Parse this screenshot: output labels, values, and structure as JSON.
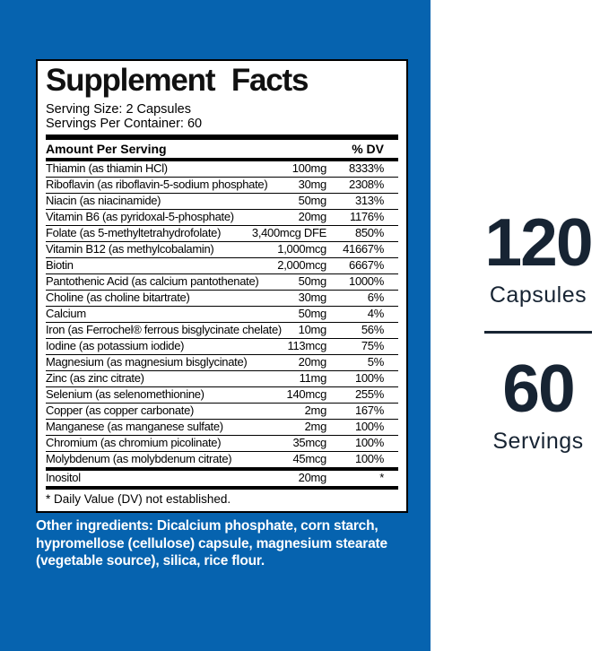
{
  "colors": {
    "background_blue": "#0663af",
    "panel_background": "#ffffff",
    "panel_border": "#000000",
    "text_black": "#000000",
    "navy_text": "#172433",
    "other_ingredients_text": "#ffffff"
  },
  "label": {
    "title": "Supplement Facts",
    "serving_size": "Serving Size: 2 Capsules",
    "servings_per_container": "Servings Per Container: 60",
    "header": {
      "amount": "Amount Per Serving",
      "dv": "% DV"
    },
    "rows": [
      {
        "name": "Thiamin (as thiamin HCl)",
        "amount": "100mg",
        "dv": "8333%"
      },
      {
        "name": "Riboflavin (as riboflavin-5-sodium phosphate)",
        "amount": "30mg",
        "dv": "2308%"
      },
      {
        "name": "Niacin (as niacinamide)",
        "amount": "50mg",
        "dv": "313%"
      },
      {
        "name": "Vitamin B6 (as pyridoxal-5-phosphate)",
        "amount": "20mg",
        "dv": "1176%"
      },
      {
        "name": "Folate (as 5-methyltetrahydrofolate)",
        "amount": "3,400mcg DFE",
        "dv": "850%"
      },
      {
        "name": "Vitamin B12 (as methylcobalamin)",
        "amount": "1,000mcg",
        "dv": "41667%"
      },
      {
        "name": "Biotin",
        "amount": "2,000mcg",
        "dv": "6667%"
      },
      {
        "name": "Pantothenic Acid (as calcium pantothenate)",
        "amount": "50mg",
        "dv": "1000%"
      },
      {
        "name": "Choline (as choline bitartrate)",
        "amount": "30mg",
        "dv": "6%"
      },
      {
        "name": "Calcium",
        "amount": "50mg",
        "dv": "4%"
      },
      {
        "name": "Iron (as Ferrochel® ferrous bisglycinate chelate)",
        "amount": "10mg",
        "dv": "56%"
      },
      {
        "name": "Iodine (as potassium iodide)",
        "amount": "113mcg",
        "dv": "75%"
      },
      {
        "name": "Magnesium (as magnesium bisglycinate)",
        "amount": "20mg",
        "dv": "5%"
      },
      {
        "name": "Zinc (as zinc citrate)",
        "amount": "11mg",
        "dv": "100%"
      },
      {
        "name": "Selenium (as selenomethionine)",
        "amount": "140mcg",
        "dv": "255%"
      },
      {
        "name": "Copper (as copper carbonate)",
        "amount": "2mg",
        "dv": "167%"
      },
      {
        "name": "Manganese (as manganese sulfate)",
        "amount": "2mg",
        "dv": "100%"
      },
      {
        "name": "Chromium (as chromium picolinate)",
        "amount": "35mcg",
        "dv": "100%"
      },
      {
        "name": "Molybdenum (as molybdenum citrate)",
        "amount": "45mcg",
        "dv": "100%"
      }
    ],
    "inositol": {
      "name": "Inositol",
      "amount": "20mg",
      "dv": "*"
    },
    "footnote": "* Daily Value (DV) not established."
  },
  "other_ingredients": "Other ingredients: Dicalcium phosphate, corn starch, hypromellose (cellulose) capsule, magnesium stearate (vegetable source), silica, rice flour.",
  "right_panel": {
    "capsule_count": "120",
    "capsule_label": "Capsules",
    "serving_count": "60",
    "serving_label": "Servings"
  }
}
